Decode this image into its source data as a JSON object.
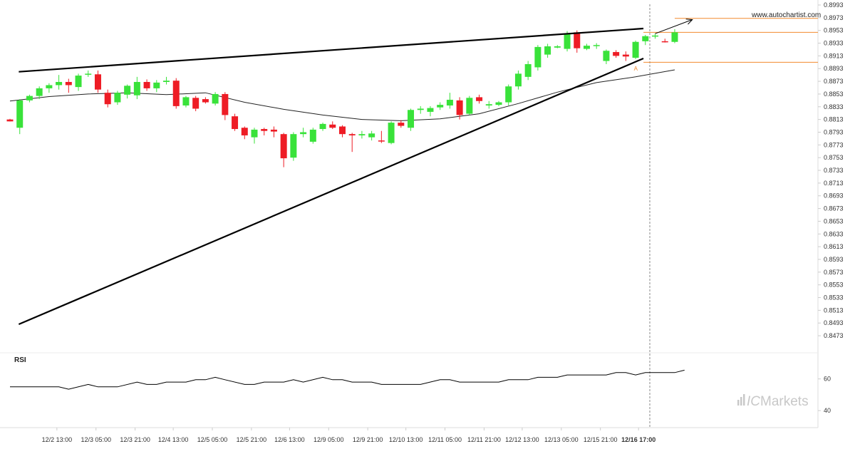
{
  "watermark": "www.autochartist.com",
  "brand": {
    "prefix": "IC",
    "name": "Markets"
  },
  "rsi_label": "RSI",
  "marker_label": "A",
  "colors": {
    "up": "#39e23a",
    "down": "#ee1c25",
    "axis": "#dddddd",
    "trend": "#000000",
    "level": "#f28a2e",
    "ma": "#222222",
    "rsi": "#000000",
    "brand": "#c8c8c8"
  },
  "chart_data": {
    "type": "candlestick",
    "price_axis": {
      "ylim": [
        0.8463,
        0.8993
      ],
      "ticks": [
        0.8993,
        0.8973,
        0.8953,
        0.8933,
        0.8913,
        0.8893,
        0.8873,
        0.8853,
        0.8833,
        0.8813,
        0.8793,
        0.8773,
        0.8753,
        0.8733,
        0.8713,
        0.8693,
        0.8673,
        0.8653,
        0.8633,
        0.8613,
        0.8593,
        0.8573,
        0.8553,
        0.8533,
        0.8513,
        0.8493,
        0.8473
      ]
    },
    "x_axis": {
      "tick_labels": [
        {
          "label": "12/2 13:00",
          "index": 4.8
        },
        {
          "label": "12/3 05:00",
          "index": 8.8
        },
        {
          "label": "12/3 21:00",
          "index": 12.8
        },
        {
          "label": "12/4 13:00",
          "index": 16.7
        },
        {
          "label": "12/5 05:00",
          "index": 20.7
        },
        {
          "label": "12/5 21:00",
          "index": 24.7
        },
        {
          "label": "12/6 13:00",
          "index": 28.6
        },
        {
          "label": "12/9 05:00",
          "index": 32.6
        },
        {
          "label": "12/9 21:00",
          "index": 36.6
        },
        {
          "label": "12/10 13:00",
          "index": 40.5
        },
        {
          "label": "12/11 05:00",
          "index": 44.5
        },
        {
          "label": "12/11 21:00",
          "index": 48.5
        },
        {
          "label": "12/12 13:00",
          "index": 52.4
        },
        {
          "label": "12/13 05:00",
          "index": 56.4
        },
        {
          "label": "12/15 21:00",
          "index": 60.4
        },
        {
          "label": "12/16 17:00",
          "index": 64.3
        }
      ],
      "current": "12/16 17:00"
    },
    "candles": [
      {
        "o": 0.8813,
        "h": 0.8814,
        "l": 0.881,
        "c": 0.881
      },
      {
        "o": 0.88,
        "h": 0.8845,
        "l": 0.879,
        "c": 0.8843
      },
      {
        "o": 0.8843,
        "h": 0.8852,
        "l": 0.884,
        "c": 0.885
      },
      {
        "o": 0.885,
        "h": 0.8865,
        "l": 0.8845,
        "c": 0.8862
      },
      {
        "o": 0.8862,
        "h": 0.887,
        "l": 0.8855,
        "c": 0.8867
      },
      {
        "o": 0.8867,
        "h": 0.8883,
        "l": 0.886,
        "c": 0.8872
      },
      {
        "o": 0.8872,
        "h": 0.8877,
        "l": 0.8855,
        "c": 0.8867
      },
      {
        "o": 0.8864,
        "h": 0.8885,
        "l": 0.8858,
        "c": 0.8882
      },
      {
        "o": 0.8885,
        "h": 0.889,
        "l": 0.888,
        "c": 0.8885
      },
      {
        "o": 0.8884,
        "h": 0.889,
        "l": 0.8855,
        "c": 0.886
      },
      {
        "o": 0.8855,
        "h": 0.886,
        "l": 0.8832,
        "c": 0.8837
      },
      {
        "o": 0.884,
        "h": 0.8858,
        "l": 0.8836,
        "c": 0.8855
      },
      {
        "o": 0.8852,
        "h": 0.8868,
        "l": 0.8846,
        "c": 0.8866
      },
      {
        "o": 0.8851,
        "h": 0.888,
        "l": 0.8845,
        "c": 0.8872
      },
      {
        "o": 0.8872,
        "h": 0.8876,
        "l": 0.8858,
        "c": 0.8862
      },
      {
        "o": 0.8862,
        "h": 0.8875,
        "l": 0.8856,
        "c": 0.8871
      },
      {
        "o": 0.8872,
        "h": 0.888,
        "l": 0.8868,
        "c": 0.8874
      },
      {
        "o": 0.8874,
        "h": 0.8878,
        "l": 0.883,
        "c": 0.8834
      },
      {
        "o": 0.8835,
        "h": 0.885,
        "l": 0.8832,
        "c": 0.8848
      },
      {
        "o": 0.8847,
        "h": 0.885,
        "l": 0.8826,
        "c": 0.883
      },
      {
        "o": 0.8845,
        "h": 0.8848,
        "l": 0.8838,
        "c": 0.884
      },
      {
        "o": 0.8838,
        "h": 0.8856,
        "l": 0.8835,
        "c": 0.8853
      },
      {
        "o": 0.8853,
        "h": 0.8856,
        "l": 0.8812,
        "c": 0.882
      },
      {
        "o": 0.8818,
        "h": 0.8822,
        "l": 0.8795,
        "c": 0.8798
      },
      {
        "o": 0.88,
        "h": 0.8802,
        "l": 0.8782,
        "c": 0.8788
      },
      {
        "o": 0.8785,
        "h": 0.88,
        "l": 0.8775,
        "c": 0.8797
      },
      {
        "o": 0.8798,
        "h": 0.88,
        "l": 0.8788,
        "c": 0.8795
      },
      {
        "o": 0.8797,
        "h": 0.8802,
        "l": 0.8785,
        "c": 0.8794
      },
      {
        "o": 0.879,
        "h": 0.8792,
        "l": 0.8738,
        "c": 0.8752
      },
      {
        "o": 0.8753,
        "h": 0.8793,
        "l": 0.8748,
        "c": 0.879
      },
      {
        "o": 0.879,
        "h": 0.88,
        "l": 0.8785,
        "c": 0.8793
      },
      {
        "o": 0.8778,
        "h": 0.88,
        "l": 0.8775,
        "c": 0.8797
      },
      {
        "o": 0.8798,
        "h": 0.8808,
        "l": 0.8795,
        "c": 0.8806
      },
      {
        "o": 0.8805,
        "h": 0.881,
        "l": 0.8798,
        "c": 0.88
      },
      {
        "o": 0.8802,
        "h": 0.8804,
        "l": 0.8785,
        "c": 0.879
      },
      {
        "o": 0.879,
        "h": 0.8792,
        "l": 0.8762,
        "c": 0.8788
      },
      {
        "o": 0.8788,
        "h": 0.8795,
        "l": 0.8783,
        "c": 0.879
      },
      {
        "o": 0.8785,
        "h": 0.8795,
        "l": 0.878,
        "c": 0.8791
      },
      {
        "o": 0.878,
        "h": 0.8795,
        "l": 0.8776,
        "c": 0.8779
      },
      {
        "o": 0.8776,
        "h": 0.881,
        "l": 0.8774,
        "c": 0.8808
      },
      {
        "o": 0.8808,
        "h": 0.8812,
        "l": 0.88,
        "c": 0.8803
      },
      {
        "o": 0.88,
        "h": 0.883,
        "l": 0.8795,
        "c": 0.8828
      },
      {
        "o": 0.8828,
        "h": 0.8834,
        "l": 0.8822,
        "c": 0.883
      },
      {
        "o": 0.8825,
        "h": 0.8834,
        "l": 0.8818,
        "c": 0.8831
      },
      {
        "o": 0.8832,
        "h": 0.884,
        "l": 0.8828,
        "c": 0.8836
      },
      {
        "o": 0.8835,
        "h": 0.8855,
        "l": 0.883,
        "c": 0.8844
      },
      {
        "o": 0.8843,
        "h": 0.8848,
        "l": 0.8813,
        "c": 0.882
      },
      {
        "o": 0.8822,
        "h": 0.885,
        "l": 0.882,
        "c": 0.8847
      },
      {
        "o": 0.8848,
        "h": 0.8852,
        "l": 0.8838,
        "c": 0.8842
      },
      {
        "o": 0.8835,
        "h": 0.8842,
        "l": 0.883,
        "c": 0.8837
      },
      {
        "o": 0.8836,
        "h": 0.8842,
        "l": 0.8834,
        "c": 0.884
      },
      {
        "o": 0.884,
        "h": 0.8868,
        "l": 0.8835,
        "c": 0.8865
      },
      {
        "o": 0.8865,
        "h": 0.889,
        "l": 0.886,
        "c": 0.8885
      },
      {
        "o": 0.888,
        "h": 0.8905,
        "l": 0.8875,
        "c": 0.89
      },
      {
        "o": 0.8895,
        "h": 0.893,
        "l": 0.889,
        "c": 0.8927
      },
      {
        "o": 0.8915,
        "h": 0.8932,
        "l": 0.891,
        "c": 0.8928
      },
      {
        "o": 0.8926,
        "h": 0.893,
        "l": 0.8925,
        "c": 0.8928
      },
      {
        "o": 0.8924,
        "h": 0.8952,
        "l": 0.892,
        "c": 0.8948
      },
      {
        "o": 0.895,
        "h": 0.8953,
        "l": 0.8918,
        "c": 0.8925
      },
      {
        "o": 0.8924,
        "h": 0.8932,
        "l": 0.8922,
        "c": 0.8929
      },
      {
        "o": 0.8929,
        "h": 0.8933,
        "l": 0.8924,
        "c": 0.893
      },
      {
        "o": 0.8905,
        "h": 0.8923,
        "l": 0.89,
        "c": 0.8921
      },
      {
        "o": 0.8919,
        "h": 0.8922,
        "l": 0.891,
        "c": 0.8913
      },
      {
        "o": 0.8915,
        "h": 0.892,
        "l": 0.8905,
        "c": 0.8912
      },
      {
        "o": 0.891,
        "h": 0.8937,
        "l": 0.8908,
        "c": 0.8935
      },
      {
        "o": 0.8936,
        "h": 0.8946,
        "l": 0.893,
        "c": 0.8944
      },
      {
        "o": 0.8945,
        "h": 0.8948,
        "l": 0.894,
        "c": 0.8945
      },
      {
        "o": 0.8936,
        "h": 0.894,
        "l": 0.8934,
        "c": 0.8935
      },
      {
        "o": 0.8935,
        "h": 0.8955,
        "l": 0.8933,
        "c": 0.895
      }
    ],
    "moving_average": [
      {
        "i": 0,
        "v": 0.8842
      },
      {
        "i": 4,
        "v": 0.8849
      },
      {
        "i": 8,
        "v": 0.8853
      },
      {
        "i": 12,
        "v": 0.8855
      },
      {
        "i": 16,
        "v": 0.8852
      },
      {
        "i": 20,
        "v": 0.8855
      },
      {
        "i": 24,
        "v": 0.884
      },
      {
        "i": 28,
        "v": 0.8829
      },
      {
        "i": 32,
        "v": 0.882
      },
      {
        "i": 36,
        "v": 0.8813
      },
      {
        "i": 40,
        "v": 0.8811
      },
      {
        "i": 44,
        "v": 0.8814
      },
      {
        "i": 48,
        "v": 0.8822
      },
      {
        "i": 52,
        "v": 0.8838
      },
      {
        "i": 56,
        "v": 0.8856
      },
      {
        "i": 60,
        "v": 0.8871
      },
      {
        "i": 64,
        "v": 0.888
      },
      {
        "i": 68,
        "v": 0.8891
      }
    ],
    "trend_lines": [
      {
        "name": "upper",
        "from": {
          "i": 0.9,
          "v": 0.8888
        },
        "to": {
          "i": 64.8,
          "v": 0.8956
        }
      },
      {
        "name": "lower",
        "from": {
          "i": 0.9,
          "v": 0.8491
        },
        "to": {
          "i": 64.8,
          "v": 0.8909
        }
      }
    ],
    "levels": [
      {
        "v": 0.8972,
        "from_i": 68.0
      },
      {
        "v": 0.895,
        "from_i": 64.8
      },
      {
        "v": 0.8903,
        "from_i": 64.8
      }
    ],
    "projection": {
      "from": {
        "i": 66.0,
        "v": 0.8948
      },
      "to": {
        "i": 69.8,
        "v": 0.897
      }
    },
    "marker": {
      "i": 64.0,
      "v": 0.8901
    },
    "rsi": {
      "ylim": [
        36,
        72
      ],
      "ticks": [
        60,
        40
      ],
      "points": [
        {
          "i": 0,
          "v": 55
        },
        {
          "i": 5,
          "v": 55
        },
        {
          "i": 6,
          "v": 53.5
        },
        {
          "i": 8,
          "v": 56.5
        },
        {
          "i": 9,
          "v": 55
        },
        {
          "i": 11,
          "v": 55
        },
        {
          "i": 13,
          "v": 58
        },
        {
          "i": 14,
          "v": 56.5
        },
        {
          "i": 15,
          "v": 56.5
        },
        {
          "i": 16,
          "v": 58
        },
        {
          "i": 18,
          "v": 58
        },
        {
          "i": 19,
          "v": 59.5
        },
        {
          "i": 20,
          "v": 59.5
        },
        {
          "i": 21,
          "v": 61
        },
        {
          "i": 22,
          "v": 59.5
        },
        {
          "i": 24,
          "v": 56.5
        },
        {
          "i": 25,
          "v": 56.5
        },
        {
          "i": 26,
          "v": 58
        },
        {
          "i": 28,
          "v": 58
        },
        {
          "i": 29,
          "v": 59.5
        },
        {
          "i": 30,
          "v": 58
        },
        {
          "i": 32,
          "v": 61
        },
        {
          "i": 33,
          "v": 59.5
        },
        {
          "i": 34,
          "v": 59.5
        },
        {
          "i": 35,
          "v": 58
        },
        {
          "i": 37,
          "v": 58
        },
        {
          "i": 38,
          "v": 56.5
        },
        {
          "i": 42,
          "v": 56.5
        },
        {
          "i": 44,
          "v": 59.5
        },
        {
          "i": 45,
          "v": 59.5
        },
        {
          "i": 46,
          "v": 58
        },
        {
          "i": 50,
          "v": 58
        },
        {
          "i": 51,
          "v": 59.5
        },
        {
          "i": 53,
          "v": 59.5
        },
        {
          "i": 54,
          "v": 61
        },
        {
          "i": 56,
          "v": 61
        },
        {
          "i": 57,
          "v": 62.5
        },
        {
          "i": 61,
          "v": 62.5
        },
        {
          "i": 62,
          "v": 64
        },
        {
          "i": 63,
          "v": 64
        },
        {
          "i": 64,
          "v": 62.5
        },
        {
          "i": 65,
          "v": 64
        },
        {
          "i": 68,
          "v": 64
        },
        {
          "i": 69,
          "v": 65.5
        }
      ]
    }
  }
}
